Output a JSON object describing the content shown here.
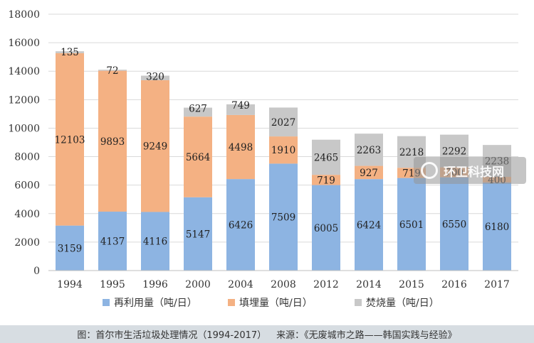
{
  "chart_data": {
    "type": "bar",
    "stacked": true,
    "categories": [
      "1994",
      "1995",
      "1996",
      "2000",
      "2004",
      "2008",
      "2012",
      "2014",
      "2015",
      "2016",
      "2017"
    ],
    "series": [
      {
        "name": "再利用量（吨/日）",
        "color": "#8db4e2",
        "values": [
          3159,
          4137,
          4116,
          5147,
          6426,
          7509,
          6005,
          6424,
          6501,
          6550,
          6180
        ]
      },
      {
        "name": "填埋量（吨/日）",
        "color": "#f4b183",
        "values": [
          12103,
          9893,
          9249,
          5664,
          4498,
          1910,
          719,
          927,
          719,
          700,
          400
        ]
      },
      {
        "name": "焚烧量（吨/日）",
        "color": "#c8c8c8",
        "values": [
          135,
          72,
          320,
          627,
          749,
          2027,
          2465,
          2263,
          2218,
          2292,
          2238
        ]
      }
    ],
    "data_labels": [
      [
        "3159",
        "4137",
        "4116",
        "5147",
        "6426",
        "7509",
        "6005",
        "6424",
        "6501",
        "6550",
        "6180"
      ],
      [
        "12103",
        "9893",
        "9249",
        "5664",
        "4498",
        "1910",
        "719",
        "927",
        "719",
        "700",
        "400"
      ],
      [
        "135",
        "72",
        "320",
        "627",
        "749",
        "2027",
        "2465",
        "2263",
        "2218",
        "2292",
        "2238"
      ]
    ],
    "ylim": [
      0,
      18000
    ],
    "yticks": [
      0,
      2000,
      4000,
      6000,
      8000,
      10000,
      12000,
      14000,
      16000,
      18000
    ],
    "grid": true,
    "legend_position": "bottom"
  },
  "caption": {
    "title": "图：首尔市生活垃圾处理情况（1994-2017）",
    "source": "来源：《无废城市之路——韩国实践与经验》"
  },
  "watermark": {
    "text": "环卫科技网"
  }
}
